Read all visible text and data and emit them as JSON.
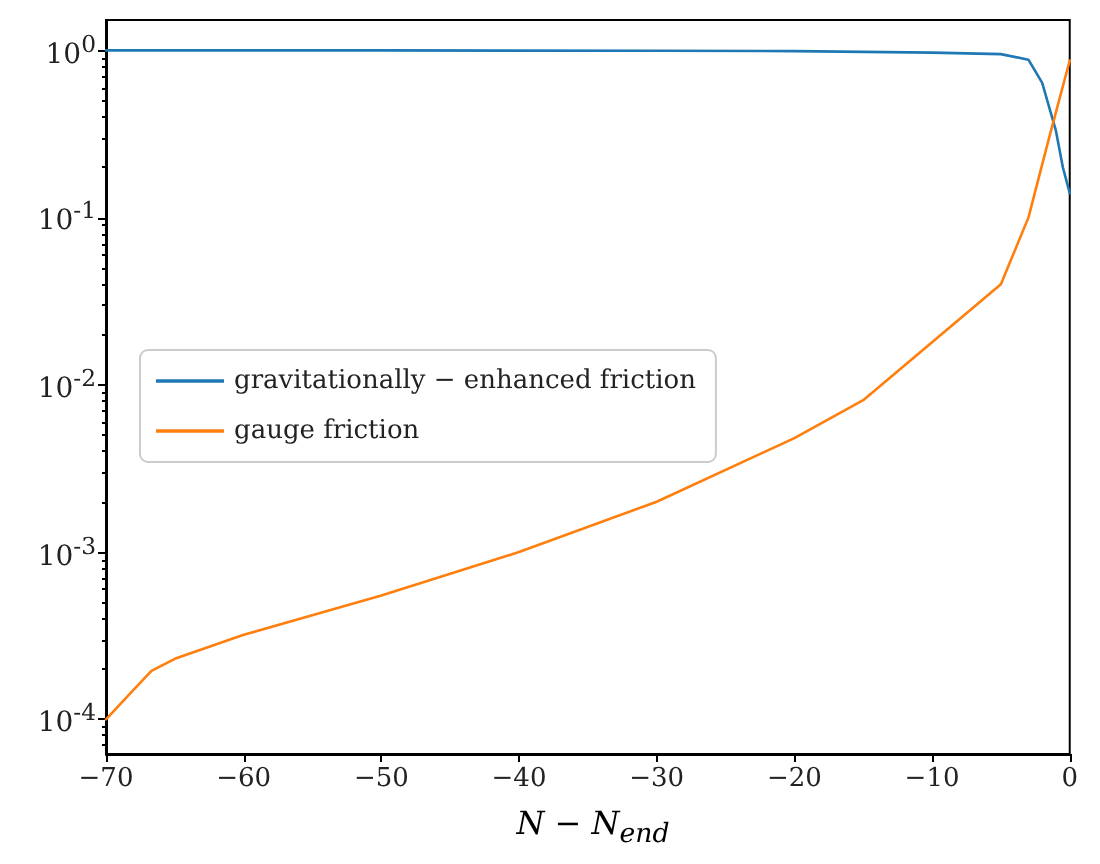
{
  "chart_data": {
    "type": "line",
    "xlabel": "N − N$_{end}$",
    "log": "y",
    "grid": false,
    "legend": "left",
    "marker": "none",
    "line_style": "solid",
    "xlim": [
      -70,
      0
    ],
    "xticks": [
      -70,
      -60,
      -50,
      -40,
      -30,
      -20,
      -10,
      0
    ],
    "ylim": [
      6.2e-05,
      1.52
    ],
    "yticks": [
      {
        "value": 0.0001,
        "label": "10$^{-4}$"
      },
      {
        "value": 0.001,
        "label": "10$^{-3}$"
      },
      {
        "value": 0.01,
        "label": "10$^{-2}$"
      },
      {
        "value": 0.1,
        "label": "10$^{-1}$"
      },
      {
        "value": 1,
        "label": "10$^{0}$"
      }
    ],
    "series": [
      {
        "name": "gravitationally − enhanced friction",
        "color": "#1f77b4",
        "x": [
          -70,
          -50,
          -30,
          -20,
          -10,
          -5,
          -3,
          -2,
          -1,
          -0.5,
          0
        ],
        "values": [
          1,
          1,
          0.995,
          0.99,
          0.97,
          0.95,
          0.88,
          0.64,
          0.33,
          0.2,
          0.14
        ]
      },
      {
        "name": "gauge friction",
        "color": "#ff7f0e",
        "x": [
          -70,
          -68,
          -66.7,
          -65,
          -60,
          -50,
          -40,
          -30,
          -20,
          -15,
          -10,
          -5,
          -3,
          -1.5,
          0
        ],
        "values": [
          0.0001,
          0.00015,
          0.000195,
          0.00023,
          0.00032,
          0.00055,
          0.001,
          0.002,
          0.0048,
          0.0081,
          0.018,
          0.04,
          0.1,
          0.3,
          0.87
        ]
      }
    ]
  }
}
